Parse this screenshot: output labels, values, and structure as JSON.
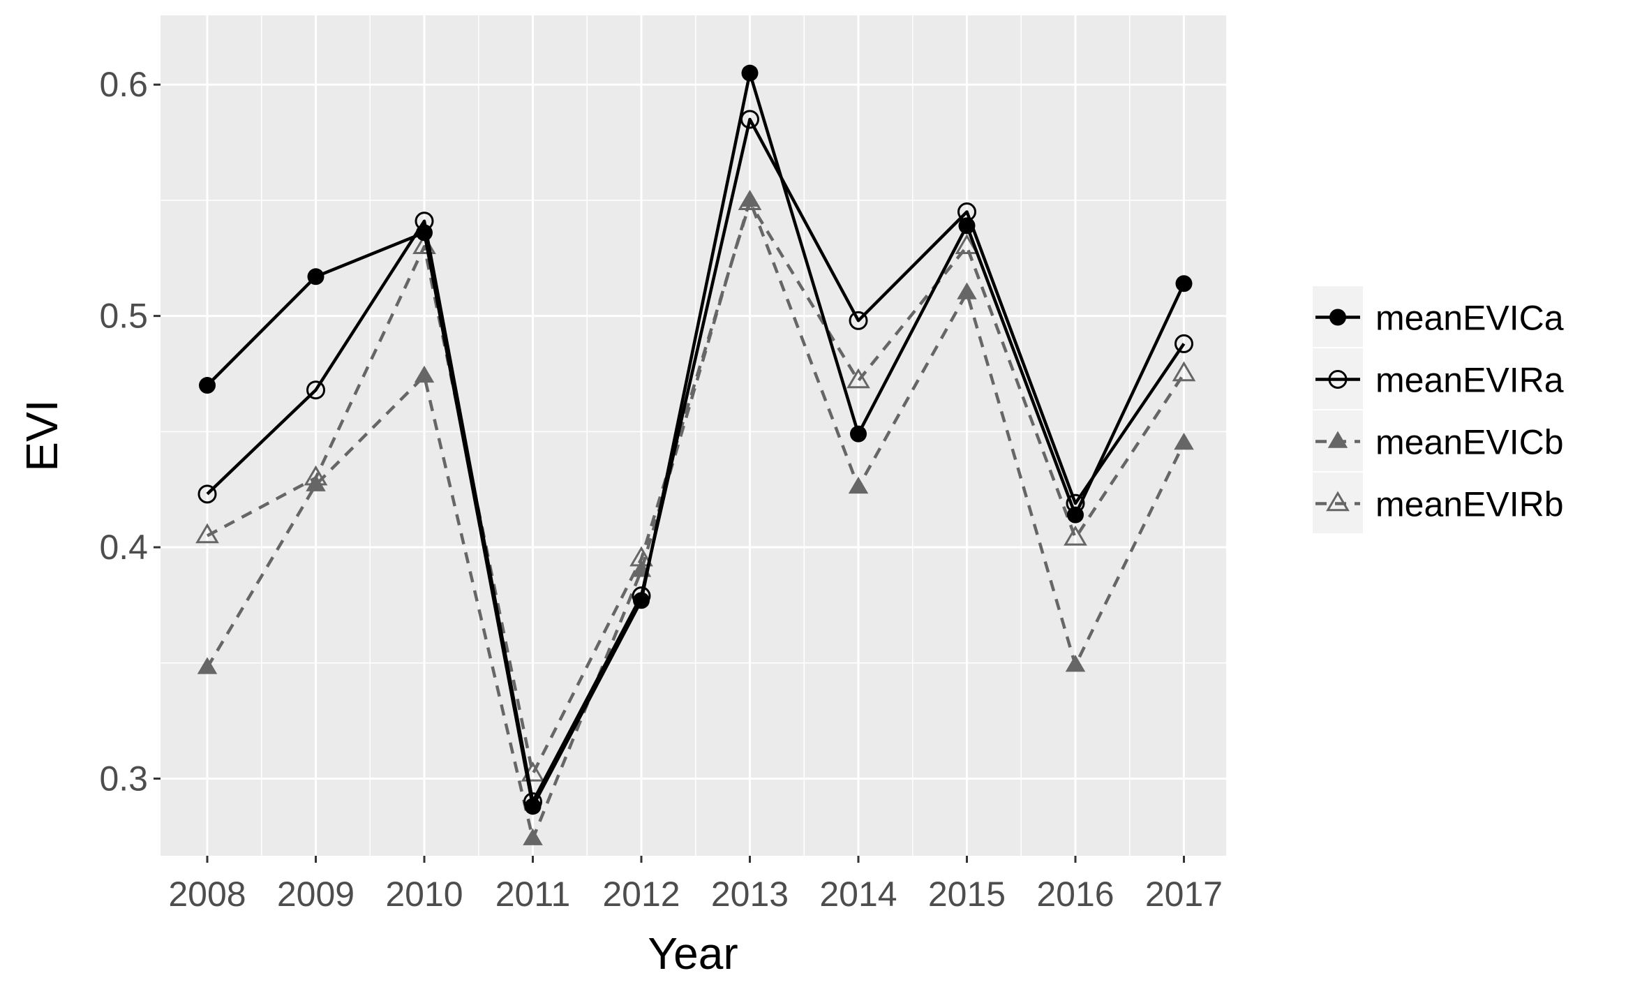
{
  "chart_data": {
    "type": "line",
    "xlabel": "Year",
    "ylabel": "EVI",
    "categories": [
      "2008",
      "2009",
      "2010",
      "2011",
      "2012",
      "2013",
      "2014",
      "2015",
      "2016",
      "2017"
    ],
    "ylim": [
      0.26,
      0.62
    ],
    "yticks": [
      0.3,
      0.4,
      0.5,
      0.6
    ],
    "ytick_labels": [
      "0.3",
      "0.4",
      "0.5",
      "0.6"
    ],
    "grid": true,
    "legend_position": "right",
    "series": [
      {
        "name": "meanEVICa",
        "values": [
          0.47,
          0.517,
          0.536,
          0.288,
          0.377,
          0.605,
          0.449,
          0.539,
          0.414,
          0.514
        ],
        "color": "#000000",
        "dash": "solid",
        "marker": "filled-circle"
      },
      {
        "name": "meanEVIRa",
        "values": [
          0.423,
          0.468,
          0.541,
          0.29,
          0.379,
          0.585,
          0.498,
          0.545,
          0.419,
          0.488
        ],
        "color": "#000000",
        "dash": "solid",
        "marker": "open-circle"
      },
      {
        "name": "meanEVICb",
        "values": [
          0.348,
          0.427,
          0.474,
          0.274,
          0.39,
          0.55,
          0.426,
          0.51,
          0.349,
          0.445
        ],
        "color": "#666666",
        "dash": "dashed",
        "marker": "filled-triangle"
      },
      {
        "name": "meanEVIRb",
        "values": [
          0.405,
          0.43,
          0.53,
          0.302,
          0.395,
          0.549,
          0.472,
          0.53,
          0.404,
          0.475
        ],
        "color": "#666666",
        "dash": "dashed",
        "marker": "open-triangle"
      }
    ]
  }
}
